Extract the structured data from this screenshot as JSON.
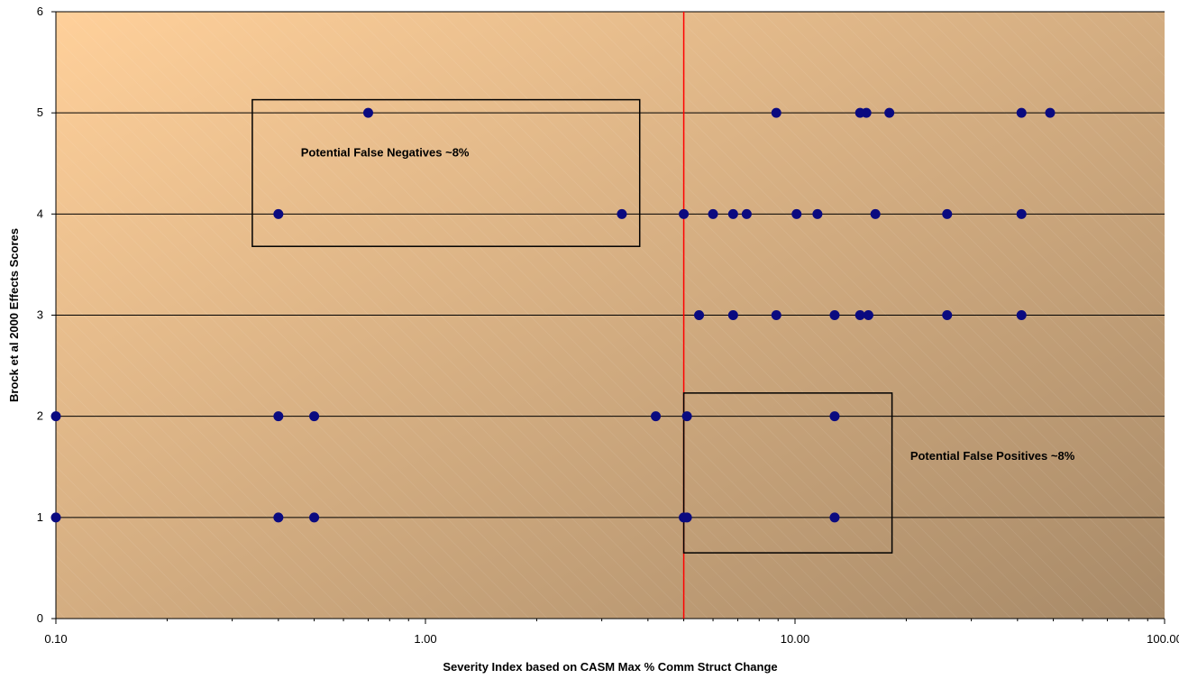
{
  "chart_data": {
    "type": "scatter",
    "title": "",
    "xlabel": "Severity Index based on CASM Max % Comm Struct Change",
    "ylabel": "Brock et al 2000 Effects Scores",
    "x_scale": "log",
    "xlim": [
      0.1,
      100
    ],
    "ylim": [
      0,
      6
    ],
    "x_ticks": [
      0.1,
      1,
      10,
      100
    ],
    "x_tick_labels": [
      "0.10",
      "1.00",
      "10.00",
      "100.00"
    ],
    "y_ticks": [
      0,
      1,
      2,
      3,
      4,
      5,
      6
    ],
    "y_tick_labels": [
      "0",
      "1",
      "2",
      "3",
      "4",
      "5",
      "6"
    ],
    "grid": "horizontal",
    "legend": "none",
    "threshold_x": 5,
    "colors": {
      "point": "#0a0a80",
      "threshold_line": "#ff0000",
      "grid": "#000000",
      "plot_bg_start": "#ffd09a",
      "plot_bg_end": "#a88a68"
    },
    "points": [
      {
        "x": 0.1,
        "y": 2
      },
      {
        "x": 0.1,
        "y": 1
      },
      {
        "x": 0.4,
        "y": 4
      },
      {
        "x": 0.4,
        "y": 2
      },
      {
        "x": 0.4,
        "y": 1
      },
      {
        "x": 0.5,
        "y": 2
      },
      {
        "x": 0.5,
        "y": 1
      },
      {
        "x": 0.7,
        "y": 5
      },
      {
        "x": 3.4,
        "y": 4
      },
      {
        "x": 4.2,
        "y": 2
      },
      {
        "x": 5.0,
        "y": 4
      },
      {
        "x": 5.1,
        "y": 2
      },
      {
        "x": 5.0,
        "y": 1
      },
      {
        "x": 5.1,
        "y": 1
      },
      {
        "x": 5.5,
        "y": 3
      },
      {
        "x": 6.0,
        "y": 4
      },
      {
        "x": 6.8,
        "y": 4
      },
      {
        "x": 6.8,
        "y": 3
      },
      {
        "x": 7.4,
        "y": 4
      },
      {
        "x": 8.9,
        "y": 5
      },
      {
        "x": 8.9,
        "y": 3
      },
      {
        "x": 10.1,
        "y": 4
      },
      {
        "x": 11.5,
        "y": 4
      },
      {
        "x": 12.8,
        "y": 3
      },
      {
        "x": 12.8,
        "y": 2
      },
      {
        "x": 12.8,
        "y": 1
      },
      {
        "x": 15.0,
        "y": 5
      },
      {
        "x": 15.0,
        "y": 3
      },
      {
        "x": 15.6,
        "y": 5
      },
      {
        "x": 15.8,
        "y": 3
      },
      {
        "x": 16.5,
        "y": 4
      },
      {
        "x": 18.0,
        "y": 5
      },
      {
        "x": 25.8,
        "y": 4
      },
      {
        "x": 25.8,
        "y": 3
      },
      {
        "x": 41.0,
        "y": 5
      },
      {
        "x": 41.0,
        "y": 4
      },
      {
        "x": 41.0,
        "y": 3
      },
      {
        "x": 49.0,
        "y": 5
      }
    ],
    "annotations": [
      {
        "text": "Potential False Negatives ~8%",
        "box": {
          "x0": 0.34,
          "x1": 3.8,
          "y0": 3.68,
          "y1": 5.13
        },
        "label_at": {
          "x": 0.46,
          "y": 4.57
        }
      },
      {
        "text": "Potential False Positives ~8%",
        "box": {
          "x0": 5.0,
          "x1": 18.3,
          "y0": 0.65,
          "y1": 2.23
        },
        "label_at": {
          "x": 20.5,
          "y": 1.57
        }
      }
    ]
  }
}
